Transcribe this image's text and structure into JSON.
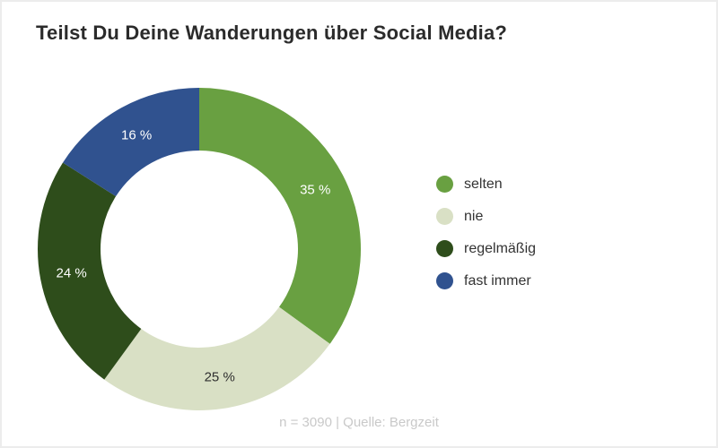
{
  "header": {
    "title": "Teilst Du Deine Wanderungen über Social Media?"
  },
  "footer": {
    "note": "n = 3090 | Quelle: Bergzeit"
  },
  "chart_data": {
    "type": "pie",
    "subtype": "donut",
    "title": "Teilst Du Deine Wanderungen über Social Media?",
    "unit": "%",
    "start_angle_deg": 0,
    "direction": "clockwise",
    "legend_position": "right",
    "note": "n = 3090 | Quelle: Bergzeit",
    "series": [
      {
        "name": "selten",
        "value": 35,
        "label": "35 %",
        "color": "#69a041",
        "label_color": "#ffffff"
      },
      {
        "name": "nie",
        "value": 25,
        "label": "25 %",
        "color": "#d9e0c5",
        "label_color": "#2f2f2f"
      },
      {
        "name": "regelmäßig",
        "value": 24,
        "label": "24 %",
        "color": "#2e4d1b",
        "label_color": "#ffffff"
      },
      {
        "name": "fast immer",
        "value": 16,
        "label": "16 %",
        "color": "#30528f",
        "label_color": "#ffffff"
      }
    ]
  }
}
